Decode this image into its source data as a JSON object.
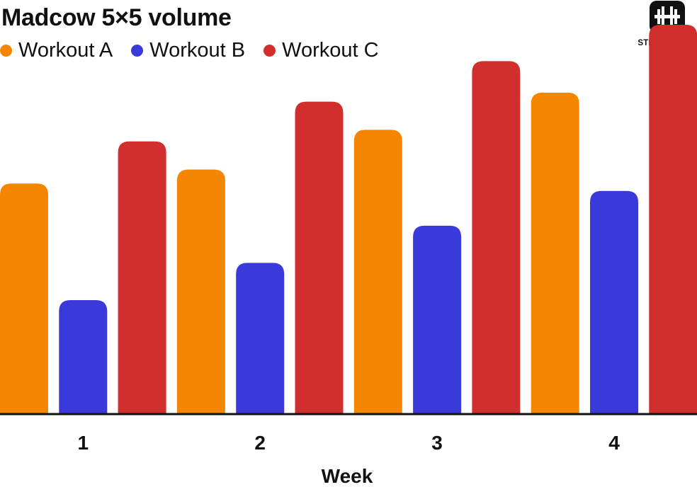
{
  "title": "Madcow 5×5 volume",
  "brand": {
    "name": "STRONGLIFTS",
    "icon": "barbell-icon"
  },
  "chart_data": {
    "type": "bar",
    "title": "Madcow 5×5 volume",
    "xlabel": "Week",
    "ylabel": "",
    "categories": [
      "1",
      "2",
      "3",
      "4"
    ],
    "series": [
      {
        "name": "Workout A",
        "color": "#F58700",
        "values": [
          278,
          295,
          343,
          388
        ]
      },
      {
        "name": "Workout B",
        "color": "#3A3ADB",
        "values": [
          137,
          182,
          227,
          269
        ]
      },
      {
        "name": "Workout C",
        "color": "#D12E2E",
        "values": [
          329,
          377,
          426,
          470
        ]
      }
    ],
    "ylim": [
      0,
      500
    ],
    "grid": false,
    "legend_position": "top-left"
  }
}
